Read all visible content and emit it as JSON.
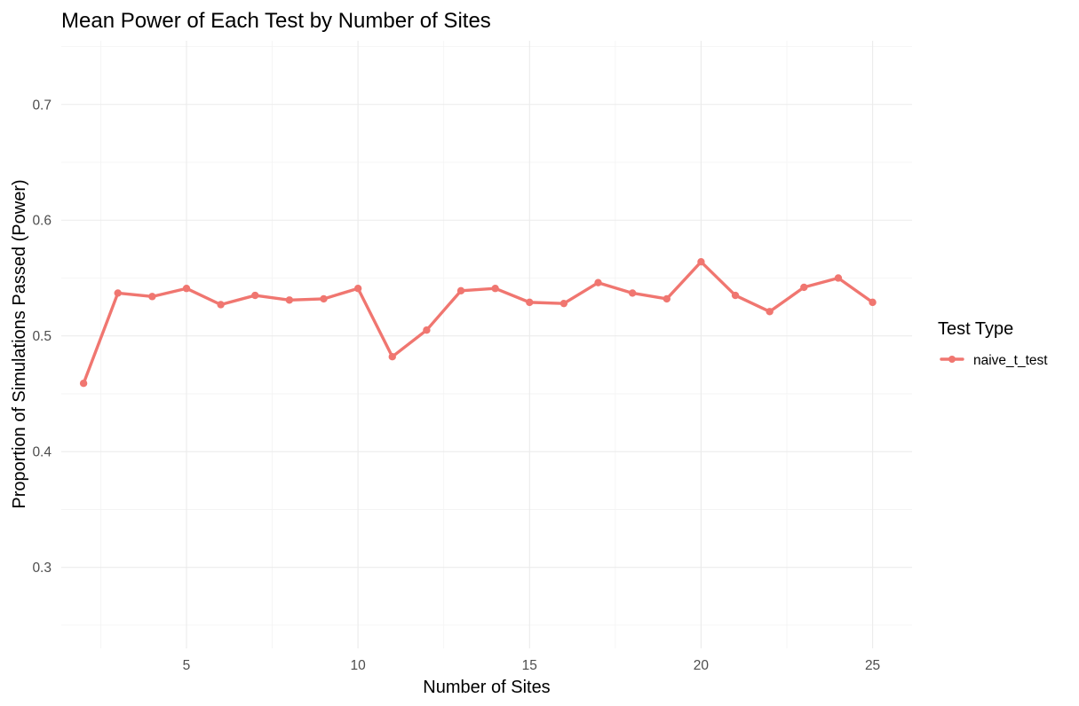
{
  "chart_data": {
    "type": "line",
    "title": "Mean Power of Each Test by Number of Sites",
    "xlabel": "Number of Sites",
    "ylabel": "Proportion of Simulations Passed (Power)",
    "xlim": [
      1.35,
      26.15
    ],
    "ylim": [
      0.23,
      0.755
    ],
    "x_ticks": [
      5,
      10,
      15,
      20,
      25
    ],
    "y_ticks": [
      0.3,
      0.4,
      0.5,
      0.6,
      0.7
    ],
    "x_tick_labels": [
      "5",
      "10",
      "15",
      "20",
      "25"
    ],
    "y_tick_labels": [
      "0.3",
      "0.4",
      "0.5",
      "0.6",
      "0.7"
    ],
    "grid": true,
    "legend": {
      "title": "Test Type",
      "position": "right"
    },
    "series": [
      {
        "name": "naive_t_test",
        "color": "#F07670",
        "x": [
          2,
          3,
          4,
          5,
          6,
          7,
          8,
          9,
          10,
          11,
          12,
          13,
          14,
          15,
          16,
          17,
          18,
          19,
          20,
          21,
          22,
          23,
          24,
          25
        ],
        "values": [
          0.459,
          0.537,
          0.534,
          0.541,
          0.527,
          0.535,
          0.531,
          0.532,
          0.541,
          0.482,
          0.505,
          0.539,
          0.541,
          0.529,
          0.528,
          0.546,
          0.537,
          0.532,
          0.564,
          0.535,
          0.521,
          0.542,
          0.55,
          0.529
        ]
      }
    ]
  }
}
